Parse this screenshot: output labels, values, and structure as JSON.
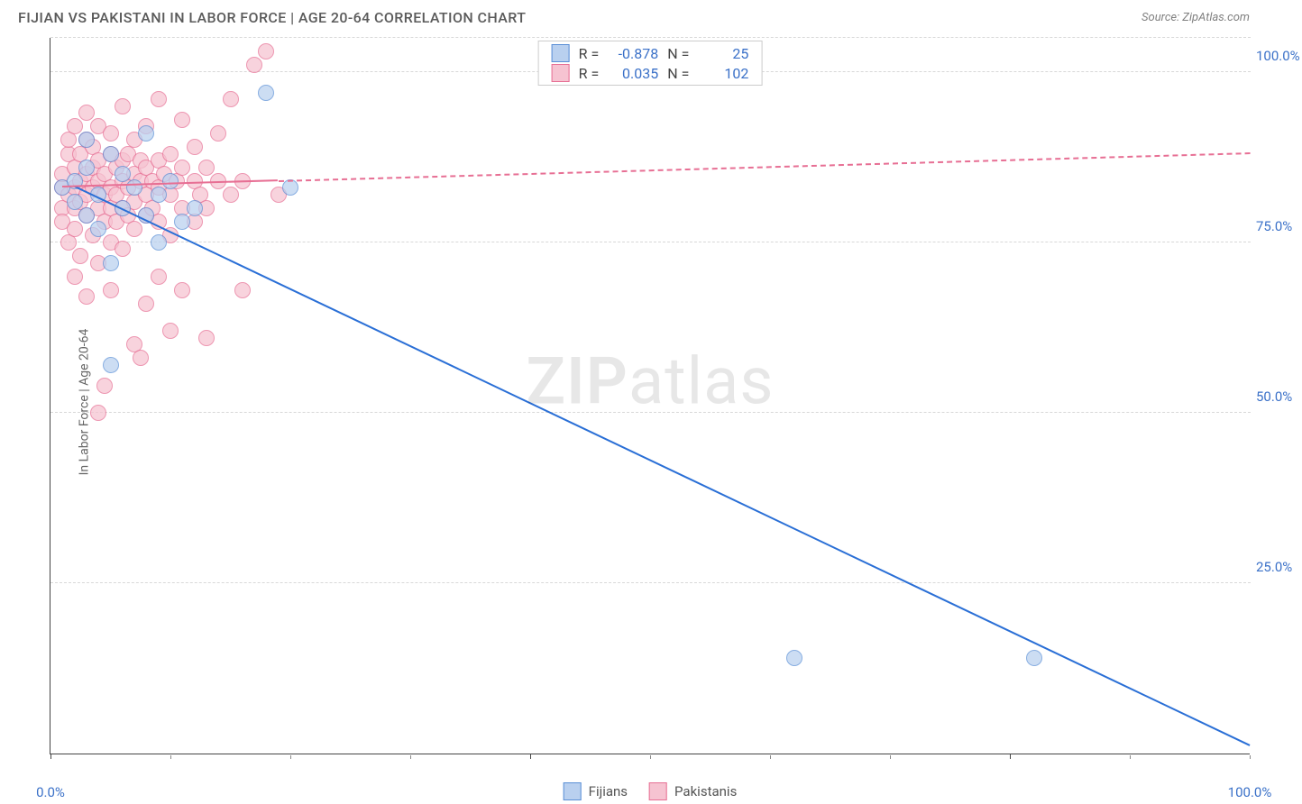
{
  "title": "FIJIAN VS PAKISTANI IN LABOR FORCE | AGE 20-64 CORRELATION CHART",
  "source_label": "Source: ZipAtlas.com",
  "ylabel": "In Labor Force | Age 20-64",
  "watermark": {
    "bold": "ZIP",
    "rest": "atlas"
  },
  "chart": {
    "type": "scatter-with-trend",
    "xlim": [
      0,
      100
    ],
    "ylim": [
      0,
      105
    ],
    "x_ticks_major": [
      0,
      40,
      80
    ],
    "x_ticks_minor": [
      10,
      20,
      30,
      50,
      60,
      70,
      90,
      100
    ],
    "x_tick_labels": [
      {
        "pos": 0,
        "text": "0.0%"
      },
      {
        "pos": 100,
        "text": "100.0%"
      }
    ],
    "y_gridlines": [
      25,
      50,
      75,
      100,
      105
    ],
    "y_tick_labels": [
      {
        "pos": 25,
        "text": "25.0%"
      },
      {
        "pos": 50,
        "text": "50.0%"
      },
      {
        "pos": 75,
        "text": "75.0%"
      },
      {
        "pos": 100,
        "text": "100.0%"
      }
    ],
    "background_color": "#ffffff",
    "grid_color": "#d8d8d8",
    "axis_color": "#444444"
  },
  "series": [
    {
      "key": "fijians",
      "label": "Fijians",
      "fill": "#b9d0ef",
      "stroke": "#5a8fd6",
      "line_color": "#2a6fd6",
      "R": "-0.878",
      "N": "25",
      "trend": {
        "x1": 2,
        "y1": 83,
        "x2": 100,
        "y2": 1,
        "dashed_from_x": null
      },
      "points": [
        [
          1,
          83
        ],
        [
          2,
          84
        ],
        [
          2,
          81
        ],
        [
          3,
          86
        ],
        [
          3,
          79
        ],
        [
          3,
          90
        ],
        [
          4,
          82
        ],
        [
          4,
          77
        ],
        [
          5,
          72
        ],
        [
          5,
          88
        ],
        [
          5,
          57
        ],
        [
          6,
          85
        ],
        [
          6,
          80
        ],
        [
          7,
          83
        ],
        [
          8,
          91
        ],
        [
          8,
          79
        ],
        [
          9,
          82
        ],
        [
          9,
          75
        ],
        [
          10,
          84
        ],
        [
          11,
          78
        ],
        [
          12,
          80
        ],
        [
          18,
          97
        ],
        [
          20,
          83
        ],
        [
          62,
          14
        ],
        [
          82,
          14
        ]
      ]
    },
    {
      "key": "pakistanis",
      "label": "Pakistanis",
      "fill": "#f6c3d1",
      "stroke": "#e76f94",
      "line_color": "#e76f94",
      "R": "0.035",
      "N": "102",
      "trend": {
        "x1": 1,
        "y1": 83,
        "x2": 100,
        "y2": 88,
        "dashed_from_x": 19
      },
      "points": [
        [
          1,
          83
        ],
        [
          1,
          85
        ],
        [
          1,
          80
        ],
        [
          1,
          78
        ],
        [
          1.5,
          88
        ],
        [
          1.5,
          82
        ],
        [
          1.5,
          75
        ],
        [
          1.5,
          90
        ],
        [
          2,
          83
        ],
        [
          2,
          86
        ],
        [
          2,
          80
        ],
        [
          2,
          77
        ],
        [
          2,
          92
        ],
        [
          2,
          70
        ],
        [
          2.5,
          84
        ],
        [
          2.5,
          88
        ],
        [
          2.5,
          81
        ],
        [
          2.5,
          73
        ],
        [
          3,
          85
        ],
        [
          3,
          82
        ],
        [
          3,
          79
        ],
        [
          3,
          90
        ],
        [
          3,
          67
        ],
        [
          3,
          94
        ],
        [
          3.5,
          83
        ],
        [
          3.5,
          86
        ],
        [
          3.5,
          76
        ],
        [
          3.5,
          89
        ],
        [
          4,
          84
        ],
        [
          4,
          80
        ],
        [
          4,
          87
        ],
        [
          4,
          72
        ],
        [
          4,
          92
        ],
        [
          4,
          50
        ],
        [
          4.5,
          54
        ],
        [
          4.5,
          85
        ],
        [
          4.5,
          82
        ],
        [
          4.5,
          78
        ],
        [
          5,
          88
        ],
        [
          5,
          83
        ],
        [
          5,
          80
        ],
        [
          5,
          75
        ],
        [
          5,
          91
        ],
        [
          5,
          68
        ],
        [
          5.5,
          86
        ],
        [
          5.5,
          82
        ],
        [
          5.5,
          78
        ],
        [
          6,
          84
        ],
        [
          6,
          87
        ],
        [
          6,
          80
        ],
        [
          6,
          74
        ],
        [
          6,
          95
        ],
        [
          6.5,
          83
        ],
        [
          6.5,
          88
        ],
        [
          6.5,
          79
        ],
        [
          7,
          85
        ],
        [
          7,
          81
        ],
        [
          7,
          77
        ],
        [
          7,
          90
        ],
        [
          7,
          60
        ],
        [
          7.5,
          58
        ],
        [
          7.5,
          84
        ],
        [
          7.5,
          87
        ],
        [
          8,
          82
        ],
        [
          8,
          86
        ],
        [
          8,
          79
        ],
        [
          8,
          92
        ],
        [
          8,
          66
        ],
        [
          8.5,
          84
        ],
        [
          8.5,
          80
        ],
        [
          9,
          83
        ],
        [
          9,
          87
        ],
        [
          9,
          78
        ],
        [
          9,
          70
        ],
        [
          9,
          96
        ],
        [
          9.5,
          85
        ],
        [
          10,
          82
        ],
        [
          10,
          88
        ],
        [
          10,
          76
        ],
        [
          10,
          62
        ],
        [
          10.5,
          84
        ],
        [
          11,
          86
        ],
        [
          11,
          80
        ],
        [
          11,
          93
        ],
        [
          11,
          68
        ],
        [
          12,
          84
        ],
        [
          12,
          78
        ],
        [
          12,
          89
        ],
        [
          12.5,
          82
        ],
        [
          13,
          86
        ],
        [
          13,
          80
        ],
        [
          13,
          61
        ],
        [
          14,
          84
        ],
        [
          14,
          91
        ],
        [
          15,
          82
        ],
        [
          15,
          96
        ],
        [
          16,
          84
        ],
        [
          17,
          101
        ],
        [
          18,
          103
        ],
        [
          19,
          82
        ],
        [
          16,
          68
        ]
      ]
    }
  ],
  "legend_top": {
    "rows": [
      {
        "series": "fijians",
        "R_label": "R =",
        "N_label": "N ="
      },
      {
        "series": "pakistanis",
        "R_label": "R =",
        "N_label": "N ="
      }
    ]
  },
  "legend_bottom": [
    "fijians",
    "pakistanis"
  ]
}
